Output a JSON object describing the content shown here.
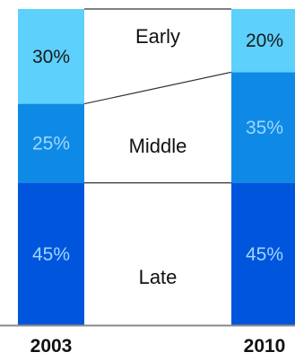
{
  "chart_data": {
    "type": "bar",
    "stacked": true,
    "percent_stacked": true,
    "categories": [
      "2003",
      "2010"
    ],
    "series": [
      {
        "name": "Late",
        "values": [
          45,
          45
        ],
        "labels": [
          "45%",
          "45%"
        ],
        "color": "#0055dd"
      },
      {
        "name": "Middle",
        "values": [
          25,
          35
        ],
        "labels": [
          "25%",
          "35%"
        ],
        "color": "#0e8ae6"
      },
      {
        "name": "Early",
        "values": [
          30,
          20
        ],
        "labels": [
          "30%",
          "20%"
        ],
        "color": "#5dd0fc"
      }
    ],
    "ylim": [
      0,
      100
    ],
    "label_colors": {
      "Late": "#9fd6ff",
      "Middle": "#9fd6ff",
      "Early": "#1a1a1a"
    },
    "line_color": "#333333",
    "grid": false,
    "legend": "none"
  }
}
